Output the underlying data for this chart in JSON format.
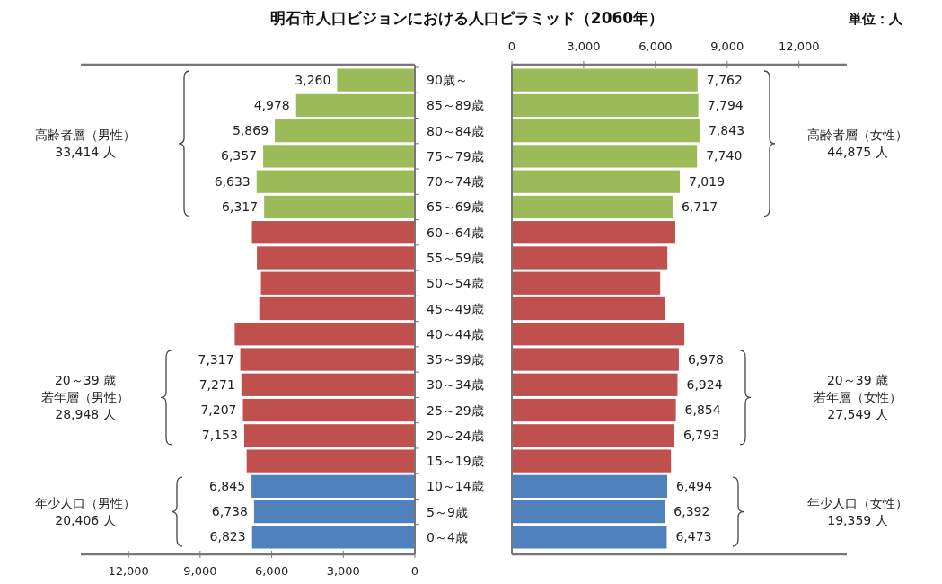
{
  "chart_data": [
    {
      "type": "bar",
      "orientation": "horizontal",
      "title": "明石市人口ビジョンにおける人口ピラミッド（2060年）",
      "categories": [
        "90歳～",
        "85～89歳",
        "80～84歳",
        "75～79歳",
        "70～74歳",
        "65～69歳",
        "60～64歳",
        "55～59歳",
        "50～54歳",
        "45～49歳",
        "40～44歳",
        "35～39歳",
        "30～34歳",
        "25～29歳",
        "20～24歳",
        "15～19歳",
        "10～14歳",
        "5～9歳",
        "0～4歳"
      ],
      "values": [
        3260,
        4978,
        5869,
        6357,
        6633,
        6317,
        6830,
        6620,
        6450,
        6520,
        7550,
        7317,
        7271,
        7207,
        7153,
        7050,
        6845,
        6738,
        6823
      ],
      "value_labels": [
        "3,260",
        "4,978",
        "5,869",
        "6,357",
        "6,633",
        "6,317",
        null,
        null,
        null,
        null,
        null,
        "7,317",
        "7,271",
        "7,207",
        "7,153",
        null,
        "6,845",
        "6,738",
        "6,823"
      ],
      "colors": [
        "#9bbb59",
        "#9bbb59",
        "#9bbb59",
        "#9bbb59",
        "#9bbb59",
        "#9bbb59",
        "#c0504d",
        "#c0504d",
        "#c0504d",
        "#c0504d",
        "#c0504d",
        "#c0504d",
        "#c0504d",
        "#c0504d",
        "#c0504d",
        "#c0504d",
        "#4f81bd",
        "#4f81bd",
        "#4f81bd"
      ],
      "xlim": [
        14000,
        0
      ],
      "xticks": [
        {
          "value": 12000,
          "label": "12,000"
        },
        {
          "value": 9000,
          "label": "9,000"
        },
        {
          "value": 6000,
          "label": "6,000"
        },
        {
          "value": 3000,
          "label": "3,000"
        },
        0
      ],
      "annotations": [
        "高齢者層（男性）",
        "33,414 人",
        "20～39 歳",
        "若年層（男性）",
        "28,948 人",
        "年少人口（男性）",
        "20,406 人"
      ]
    },
    {
      "type": "bar",
      "orientation": "horizontal",
      "categories": [
        null,
        null,
        null,
        null,
        null,
        null,
        null,
        null,
        null,
        null,
        null,
        null,
        null,
        null,
        null,
        null,
        null,
        null,
        null
      ],
      "values": [
        7762,
        7794,
        7843,
        7740,
        7019,
        6717,
        6830,
        6500,
        6200,
        6400,
        7210,
        6978,
        6924,
        6854,
        6793,
        6650,
        6494,
        6392,
        6473
      ],
      "value_labels": [
        "7,762",
        "7,794",
        "7,843",
        "7,740",
        "7,019",
        "6,717",
        null,
        null,
        null,
        null,
        null,
        "6,978",
        "6,924",
        "6,854",
        "6,793",
        null,
        "6,494",
        "6,392",
        "6,473"
      ],
      "colors": [
        "#9bbb59",
        "#9bbb59",
        "#9bbb59",
        "#9bbb59",
        "#9bbb59",
        "#9bbb59",
        "#c0504d",
        "#c0504d",
        "#c0504d",
        "#c0504d",
        "#c0504d",
        "#c0504d",
        "#c0504d",
        "#c0504d",
        "#c0504d",
        "#c0504d",
        "#4f81bd",
        "#4f81bd",
        "#4f81bd"
      ],
      "xlim": [
        0,
        14000
      ],
      "xticks": [
        0,
        {
          "value": 3000,
          "label": "3,000"
        },
        {
          "value": 6000,
          "label": "6,000"
        },
        {
          "value": 9000,
          "label": "9,000"
        },
        {
          "value": 12000,
          "label": "12,000"
        }
      ],
      "tick_labels": "x",
      "annotations": [
        "高齢者層（女性）",
        "44,875 人",
        "20～39 歳",
        "若年層（女性）",
        "27,549 人",
        "年少人口（女性）",
        "19,359 人",
        "単位：人"
      ]
    }
  ]
}
